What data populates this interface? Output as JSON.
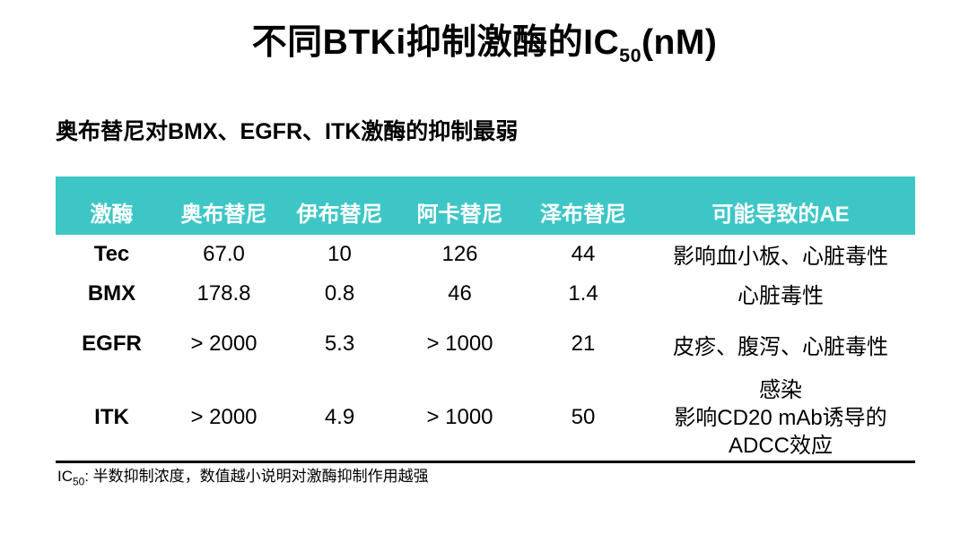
{
  "slide": {
    "title_prefix": "不同BTKi抑制激酶的IC",
    "title_subscript": "50",
    "title_suffix": "(nM)",
    "subtitle": "奥布替尼对BMX、EGFR、ITK激酶的抑制最弱",
    "footnote_prefix": "IC",
    "footnote_subscript": "50",
    "footnote_text": ": 半数抑制浓度，数值越小说明对激酶抑制作用越强"
  },
  "colors": {
    "header_bg": "#3EC6C7",
    "header_text": "#FFFFFF",
    "body_text": "#000000",
    "table_bottom_border": "#000000"
  },
  "table": {
    "headers": [
      "激酶",
      "奥布替尼",
      "伊布替尼",
      "阿卡替尼",
      "泽布替尼",
      "可能导致的AE"
    ],
    "rows": [
      {
        "kinase": "Tec",
        "values": [
          "67.0",
          "10",
          "126",
          "44"
        ],
        "ae": [
          "影响血小板、心脏毒性"
        ]
      },
      {
        "kinase": "BMX",
        "values": [
          "178.8",
          "0.8",
          "46",
          "1.4"
        ],
        "ae": [
          "心脏毒性"
        ]
      },
      {
        "kinase": "EGFR",
        "values": [
          "> 2000",
          "5.3",
          "> 1000",
          "21"
        ],
        "ae": [
          "皮疹、腹泻、心脏毒性"
        ]
      },
      {
        "kinase": "ITK",
        "values": [
          "> 2000",
          "4.9",
          "> 1000",
          "50"
        ],
        "ae": [
          "感染",
          "影响CD20 mAb诱导的",
          "ADCC效应"
        ]
      }
    ]
  },
  "chart_data": {
    "type": "table",
    "title": "不同BTKi抑制激酶的IC50(nM)",
    "columns": [
      "激酶",
      "奥布替尼",
      "伊布替尼",
      "阿卡替尼",
      "泽布替尼",
      "可能导致的AE"
    ],
    "rows": [
      [
        "Tec",
        "67.0",
        "10",
        "126",
        "44",
        "影响血小板、心脏毒性"
      ],
      [
        "BMX",
        "178.8",
        "0.8",
        "46",
        "1.4",
        "心脏毒性"
      ],
      [
        "EGFR",
        "> 2000",
        "5.3",
        "> 1000",
        "21",
        "皮疹、腹泻、心脏毒性"
      ],
      [
        "ITK",
        "> 2000",
        "4.9",
        "> 1000",
        "50",
        "感染 影响CD20 mAb诱导的 ADCC效应"
      ]
    ]
  }
}
